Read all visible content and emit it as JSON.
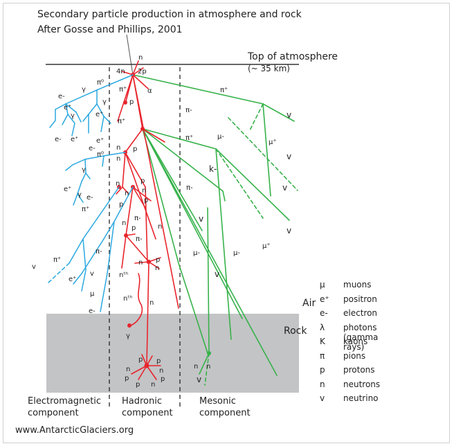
{
  "title": "Secondary particle production in atmosphere and rock",
  "subtitle": "After Gosse and Phillips, 2001",
  "labels": {
    "top_of_atmosphere": "Top of atmosphere",
    "altitude": "(~ 35 km)",
    "air": "Air",
    "rock": "Rock"
  },
  "components": {
    "electromagnetic": {
      "line1": "Electromagnetic",
      "line2": "component"
    },
    "hadronic": {
      "line1": "Hadronic",
      "line2": "component"
    },
    "mesonic": {
      "line1": "Mesonic",
      "line2": "component"
    }
  },
  "legend": [
    {
      "symbol": "μ",
      "meaning": "muons"
    },
    {
      "symbol": "e⁺",
      "meaning": "positron"
    },
    {
      "symbol": "e-",
      "meaning": "electron"
    },
    {
      "symbol": "λ",
      "meaning": "photons (gamma rays)"
    },
    {
      "symbol": "K",
      "meaning": "kaons"
    },
    {
      "symbol": "π",
      "meaning": "pions"
    },
    {
      "symbol": "p",
      "meaning": "protons"
    },
    {
      "symbol": "n",
      "meaning": "neutrons"
    },
    {
      "symbol": "v",
      "meaning": "neutrino"
    }
  ],
  "particle_labels": {
    "electromagnetic": [
      "π⁰",
      "γ",
      "e-",
      "e⁺",
      "γ",
      "e⁺",
      "γ",
      "γ",
      "e-",
      "e⁺",
      "e⁺",
      "π⁰",
      "e-",
      "γ",
      "e⁺",
      "γ",
      "e-",
      "π⁺",
      "π-",
      "π⁺",
      "v",
      "e⁺",
      "v",
      "μ",
      "e-"
    ],
    "hadronic": [
      "n",
      "4n",
      "2p",
      "π⁺",
      "α",
      "p",
      "π⁺",
      "n",
      "p",
      "n",
      "p",
      "n",
      "n",
      "p",
      "p",
      "π-",
      "n",
      "p",
      "n",
      "π-",
      "n",
      "p",
      "n",
      "nᵗʰ",
      "nᵗʰ",
      "n",
      "γ",
      "p",
      "n",
      "p",
      "p",
      "n",
      "p",
      "p"
    ],
    "mesonic": [
      "π⁺",
      "v",
      "π-",
      "μ-",
      "μ⁺",
      "v",
      "π⁺",
      "k-",
      "v",
      "π-",
      "v",
      "v",
      "μ-",
      "μ-",
      "μ⁺",
      "v",
      "n",
      "n",
      "v"
    ]
  },
  "colors": {
    "electromagnetic": "#2aa8e0",
    "hadronic": "#e8242c",
    "mesonic": "#36b24a",
    "rock": "#c3c4c6",
    "text": "#222222"
  },
  "source": "www.AntarcticGlaciers.org"
}
